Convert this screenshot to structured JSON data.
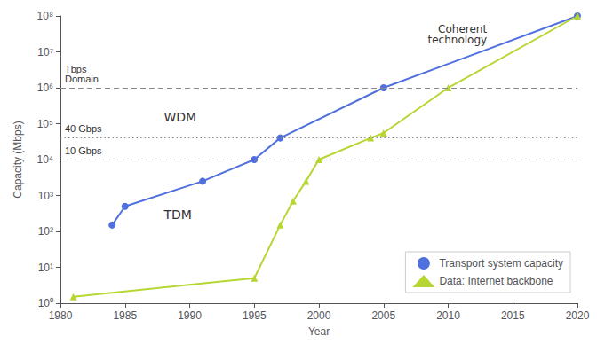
{
  "chart_data": {
    "type": "line",
    "xlabel": "Year",
    "ylabel": "Capacity (Mbps)",
    "log": "y",
    "grid": false,
    "legend": "lower right",
    "xlim": [
      1980,
      2020
    ],
    "xticks": [
      1980,
      1985,
      1990,
      1995,
      2000,
      2005,
      2010,
      2015,
      2020
    ],
    "ylim": [
      1.0,
      100000000.0
    ],
    "yticks": [
      {
        "value": 1,
        "label": "10⁰"
      },
      {
        "value": 10,
        "label": "10¹"
      },
      {
        "value": 100,
        "label": "10²"
      },
      {
        "value": 1000,
        "label": "10³"
      },
      {
        "value": 10000,
        "label": "10⁴"
      },
      {
        "value": 100000,
        "label": "10⁵"
      },
      {
        "value": 1000000,
        "label": "10⁶"
      },
      {
        "value": 10000000,
        "label": "10⁷"
      },
      {
        "value": 100000000,
        "label": "10⁸"
      }
    ],
    "series": [
      {
        "name": "Transport system capacity",
        "marker": "circle",
        "line_style": "solid",
        "x": [
          1984,
          1985,
          1991,
          1995,
          1997,
          2005,
          2020
        ],
        "values": [
          150,
          500,
          2500,
          10000,
          40000,
          1000000,
          100000000
        ]
      },
      {
        "name": "Data: Internet backbone",
        "marker": "triangle",
        "line_style": "solid",
        "x": [
          1981,
          1995,
          1997,
          1998,
          1999,
          2000,
          2004,
          2005,
          2010,
          2020
        ],
        "values": [
          1.5,
          5,
          150,
          700,
          2500,
          10000,
          40000,
          55000,
          1000000,
          100000000
        ]
      }
    ],
    "hlines": [
      {
        "value": 1000000,
        "line_style": "dashed",
        "label": "Tbps\nDomain"
      },
      {
        "value": 40000,
        "line_style": "dotted",
        "label": "40 Gbps"
      },
      {
        "value": 10000,
        "line_style": "dashdot",
        "label": "10 Gbps"
      }
    ],
    "annotations": [
      "WDM",
      "TDM",
      "Coherent\ntechnology"
    ]
  }
}
